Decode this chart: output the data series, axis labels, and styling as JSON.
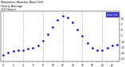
{
  "title": "Milwaukee Weather Wind Chill\nHourly Average\n(24 Hours)",
  "hours": [
    0,
    1,
    2,
    3,
    4,
    5,
    6,
    7,
    8,
    9,
    10,
    11,
    12,
    13,
    14,
    15,
    16,
    17,
    18,
    19,
    20,
    21,
    22,
    23
  ],
  "wind_chill": [
    -22,
    -20,
    -19,
    -18,
    -18,
    -17,
    -16,
    -14,
    -10,
    -4,
    2,
    8,
    12,
    10,
    6,
    0,
    -6,
    -12,
    -16,
    -18,
    -18,
    -16,
    -14,
    -13
  ],
  "line_color": "#0000ff",
  "bg_color": "#ffffff",
  "grid_color": "#888888",
  "ylim": [
    -28,
    16
  ],
  "yticks": [
    10,
    5,
    0,
    -5,
    -10,
    -15,
    -20,
    -25
  ],
  "legend_label": "Wind Chill",
  "legend_color": "#0000cc",
  "grid_hours": [
    0,
    4,
    8,
    12,
    16,
    20
  ]
}
